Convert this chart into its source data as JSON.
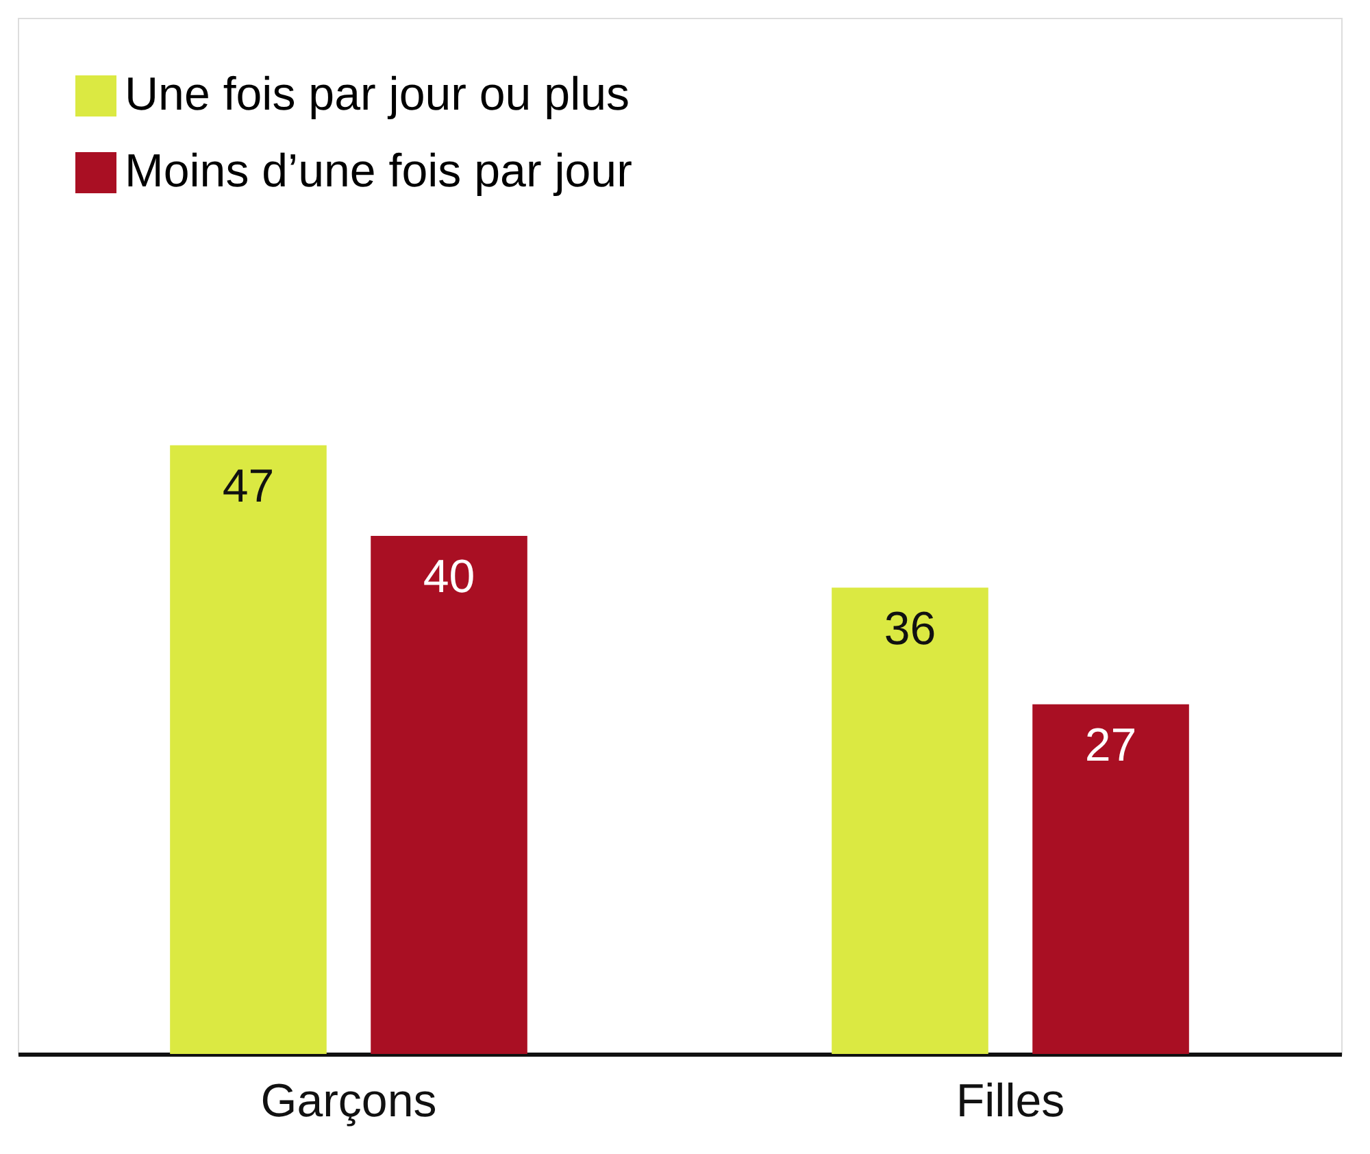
{
  "chart_data": {
    "type": "bar",
    "categories": [
      "Garçons",
      "Filles"
    ],
    "series": [
      {
        "name": "Une fois par jour ou plus",
        "color": "#dbe942",
        "values": [
          47,
          36
        ]
      },
      {
        "name": "Moins d’une fois par jour",
        "color": "#a90f23",
        "values": [
          40,
          27
        ]
      }
    ],
    "ylim": [
      0,
      80
    ],
    "data_labels": true,
    "legend": "top left",
    "grid": false,
    "tick_labels": "x"
  }
}
